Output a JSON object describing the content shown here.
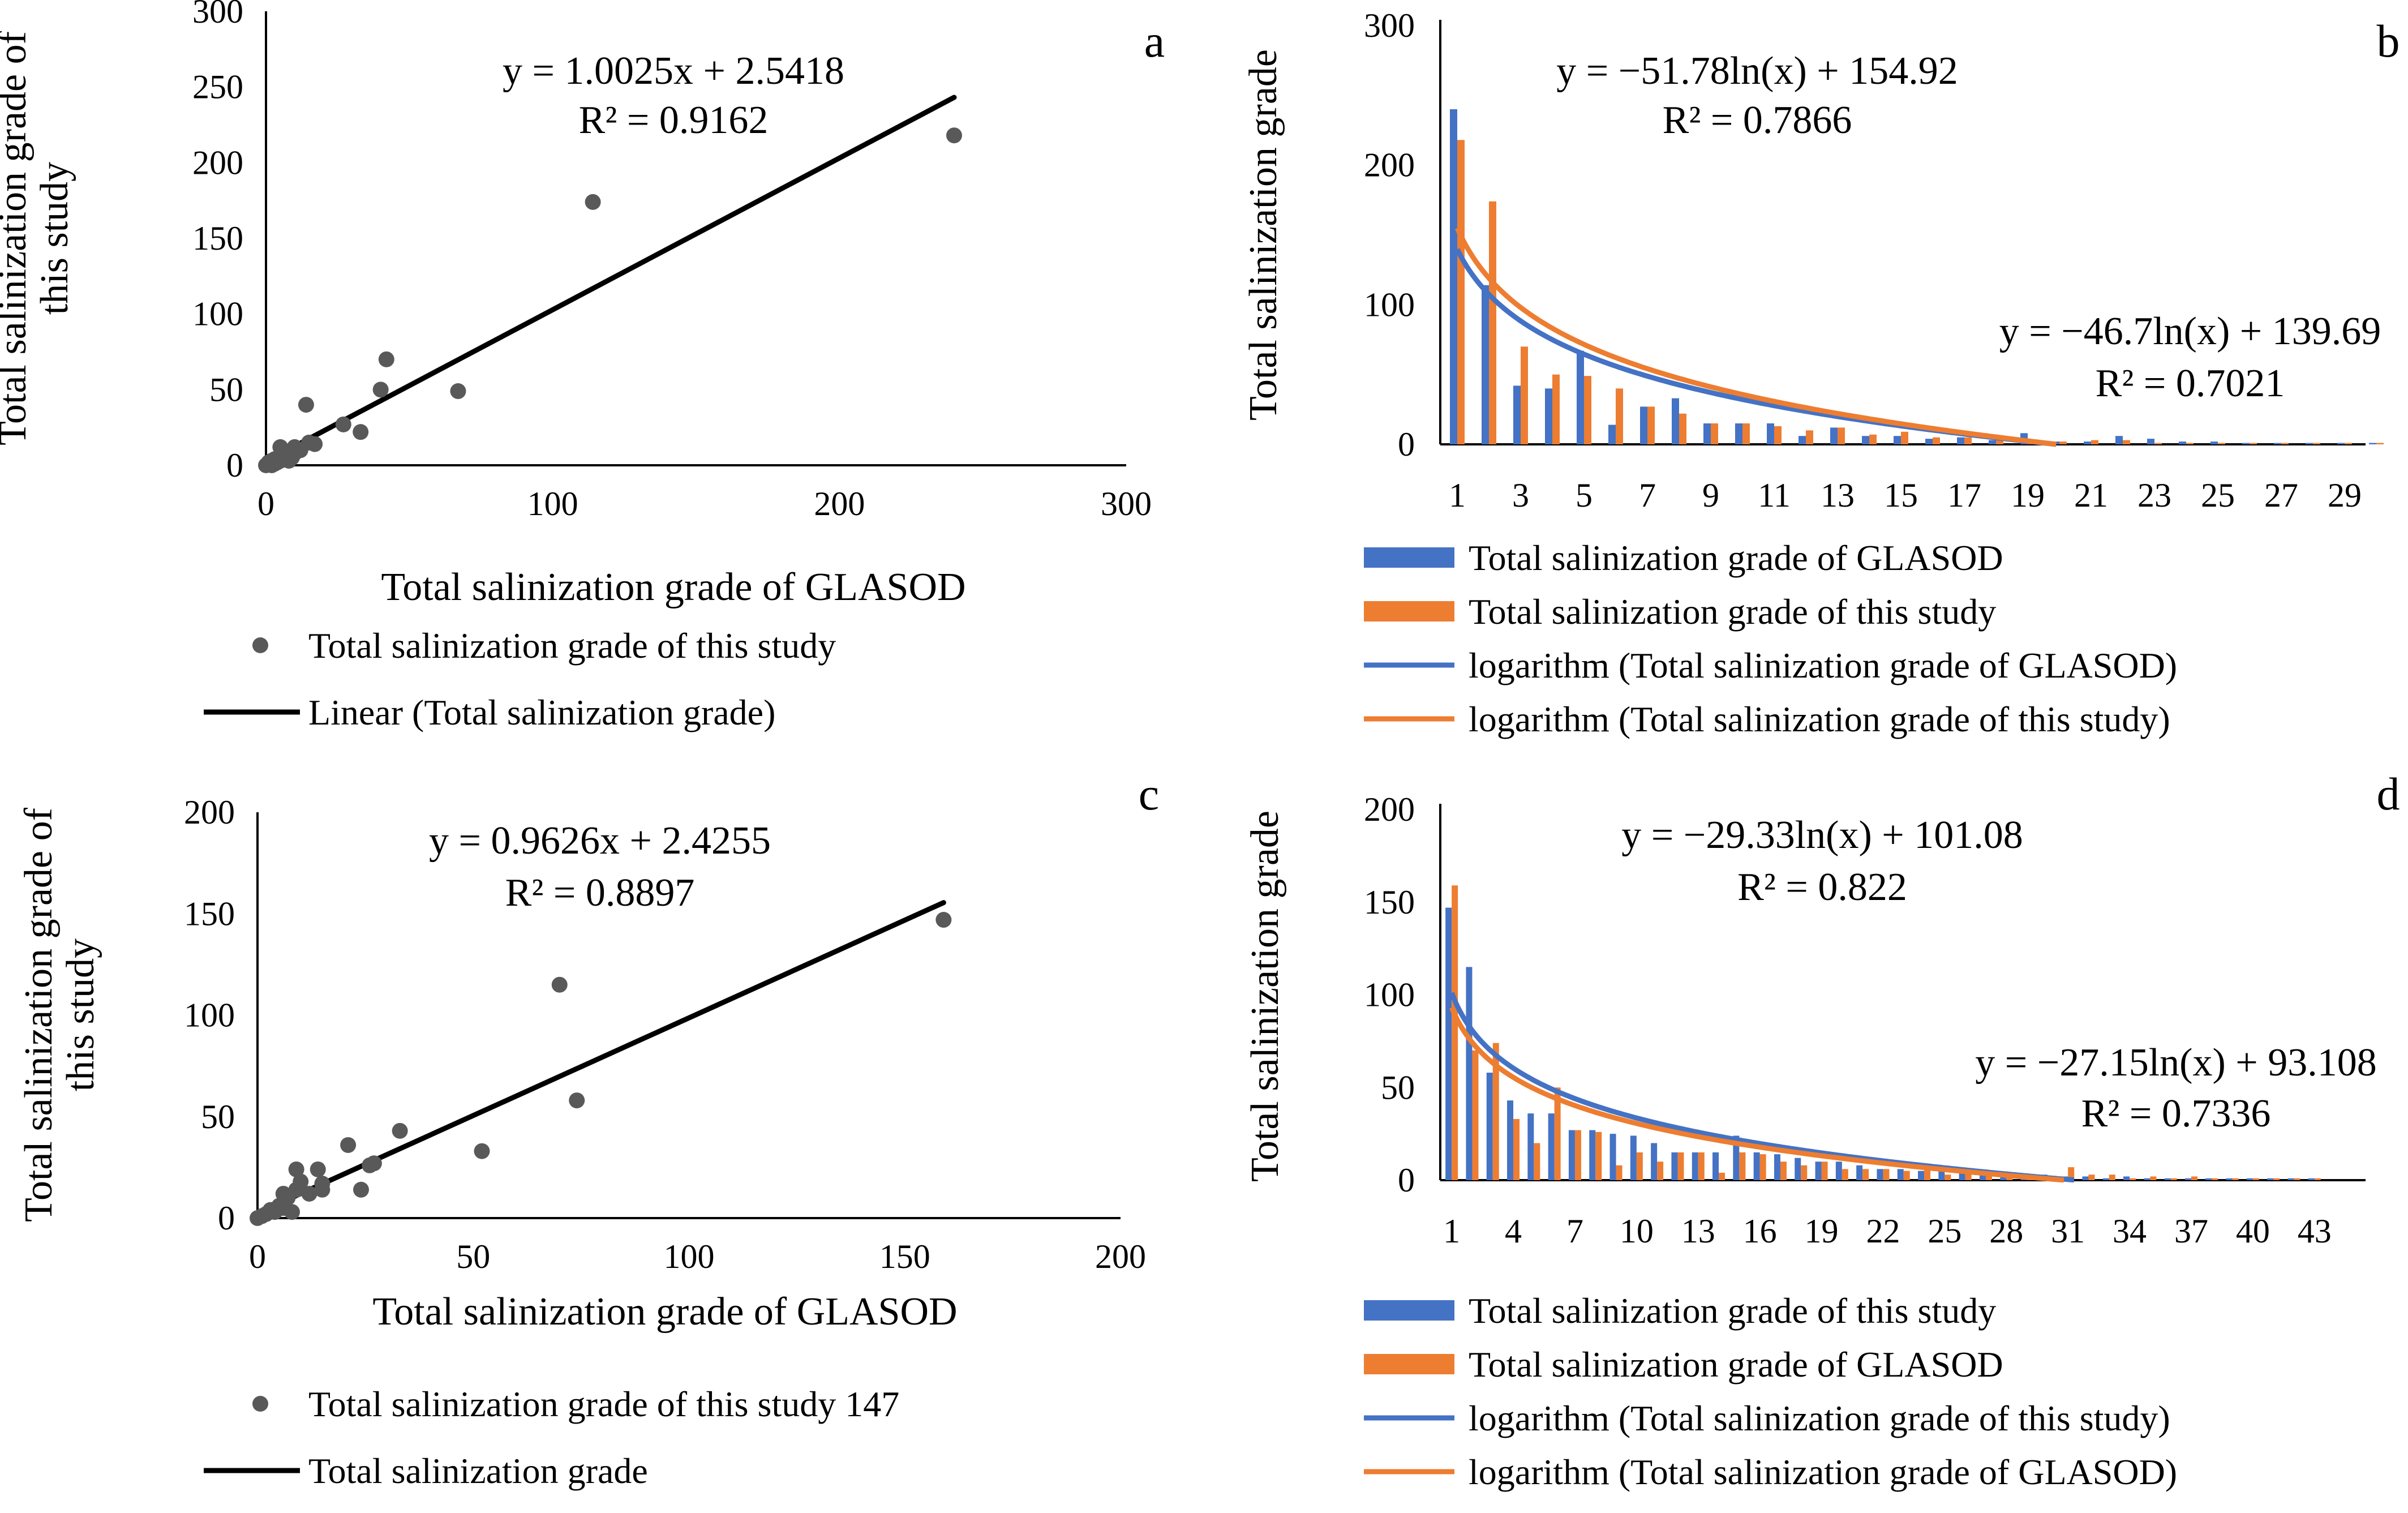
{
  "colors": {
    "blue": "#4472C4",
    "orange": "#ED7D31",
    "gray": "#595959",
    "black": "#000000"
  },
  "chart_data": [
    {
      "type": "scatter",
      "panel": "a",
      "xlabel": "Total salinization grade of GLASOD",
      "ylabel": [
        "Total salinization grade of",
        "this study"
      ],
      "xlim": [
        0,
        300
      ],
      "ylim": [
        0,
        300
      ],
      "xticks": [
        0,
        100,
        200,
        300
      ],
      "yticks": [
        0,
        50,
        100,
        150,
        200,
        250,
        300
      ],
      "points": [
        [
          0,
          0
        ],
        [
          1,
          1
        ],
        [
          1,
          2
        ],
        [
          2,
          0
        ],
        [
          2,
          3
        ],
        [
          3,
          1
        ],
        [
          3,
          4
        ],
        [
          4,
          2
        ],
        [
          5,
          6
        ],
        [
          5,
          3
        ],
        [
          6,
          8
        ],
        [
          7,
          4
        ],
        [
          8,
          3
        ],
        [
          9,
          5
        ],
        [
          10,
          8
        ],
        [
          10,
          12
        ],
        [
          5,
          12
        ],
        [
          12,
          10
        ],
        [
          14,
          40
        ],
        [
          15,
          15
        ],
        [
          17,
          14
        ],
        [
          27,
          27
        ],
        [
          33,
          22
        ],
        [
          40,
          50
        ],
        [
          42,
          70
        ],
        [
          67,
          49
        ],
        [
          114,
          174
        ],
        [
          240,
          218
        ]
      ],
      "trendline": {
        "slope": 1.0025,
        "intercept": 2.5418,
        "x_range": [
          0,
          240
        ]
      },
      "equation": "y = 1.0025x + 2.5418",
      "r2": "R² = 0.9162",
      "legend": [
        "Total salinization grade of this study",
        "Linear (Total salinization grade)"
      ]
    },
    {
      "type": "bar",
      "panel": "b",
      "ylabel": "Total salinization grade",
      "xlim": [
        1,
        30
      ],
      "ylim": [
        0,
        300
      ],
      "xticks": [
        1,
        3,
        5,
        7,
        9,
        11,
        13,
        15,
        17,
        19,
        21,
        23,
        25,
        27,
        29
      ],
      "yticks": [
        0,
        100,
        200,
        300
      ],
      "series": [
        {
          "name": "Total salinization grade of GLASOD",
          "color": "blue",
          "values": [
            240,
            114,
            42,
            40,
            67,
            14,
            27,
            33,
            15,
            15,
            15,
            6,
            12,
            6,
            6,
            4,
            5,
            3,
            8,
            2,
            2,
            6,
            4,
            2,
            2,
            1,
            1,
            1,
            1,
            1
          ]
        },
        {
          "name": "Total salinization grade of this study",
          "color": "orange",
          "values": [
            218,
            174,
            70,
            50,
            49,
            40,
            27,
            22,
            15,
            15,
            13,
            10,
            12,
            7,
            9,
            5,
            5,
            3,
            3,
            2,
            3,
            3,
            1,
            1,
            1,
            1,
            1,
            1,
            1,
            1
          ]
        }
      ],
      "log_fits": [
        {
          "name": "logarithm (Total salinization grade of GLASOD)",
          "color": "blue",
          "a": -46.7,
          "b": 139.69
        },
        {
          "name": "logarithm (Total salinization grade of this study)",
          "color": "orange",
          "a": -51.78,
          "b": 154.92
        }
      ],
      "equation_1": "y = −51.78ln(x) + 154.92",
      "r2_1": "R² = 0.7866",
      "equation_2": "y = −46.7ln(x) + 139.69",
      "r2_2": "R² = 0.7021",
      "legend": [
        "Total salinization grade of GLASOD",
        "Total salinization grade of this study",
        "logarithm (Total salinization grade of GLASOD)",
        "logarithm (Total salinization grade of this study)"
      ]
    },
    {
      "type": "scatter",
      "panel": "c",
      "xlabel": "Total salinization grade of GLASOD",
      "ylabel": [
        "Total salinization grade of",
        "this study"
      ],
      "xlim": [
        0,
        200
      ],
      "ylim": [
        0,
        200
      ],
      "xticks": [
        0,
        50,
        100,
        150,
        200
      ],
      "yticks": [
        0,
        50,
        100,
        150,
        200
      ],
      "points": [
        [
          0,
          0
        ],
        [
          1,
          1
        ],
        [
          2,
          2
        ],
        [
          3,
          4
        ],
        [
          4,
          3
        ],
        [
          5,
          6
        ],
        [
          6,
          5
        ],
        [
          6,
          12
        ],
        [
          7,
          10
        ],
        [
          8,
          3
        ],
        [
          9,
          14
        ],
        [
          9,
          24
        ],
        [
          10,
          18
        ],
        [
          12,
          12
        ],
        [
          14,
          24
        ],
        [
          15,
          14
        ],
        [
          15,
          17
        ],
        [
          21,
          36
        ],
        [
          24,
          14
        ],
        [
          26,
          26
        ],
        [
          27,
          27
        ],
        [
          33,
          43
        ],
        [
          52,
          33
        ],
        [
          70,
          115
        ],
        [
          74,
          58
        ],
        [
          159,
          147
        ]
      ],
      "trendline": {
        "slope": 0.9626,
        "intercept": 2.4255,
        "x_range": [
          0,
          159
        ]
      },
      "equation": "y = 0.9626x + 2.4255",
      "r2": "R² = 0.8897",
      "legend": [
        "Total salinization grade of this study 147",
        "Total salinization grade"
      ]
    },
    {
      "type": "bar",
      "panel": "d",
      "ylabel": "Total salinization grade",
      "xlim": [
        1,
        43
      ],
      "ylim": [
        0,
        200
      ],
      "xticks": [
        1,
        4,
        7,
        10,
        13,
        16,
        19,
        22,
        25,
        28,
        31,
        34,
        37,
        40,
        43
      ],
      "yticks": [
        0,
        50,
        100,
        150,
        200
      ],
      "series": [
        {
          "name": "Total salinization grade of this study",
          "color": "blue",
          "values": [
            147,
            115,
            58,
            43,
            36,
            36,
            27,
            27,
            25,
            24,
            20,
            15,
            15,
            15,
            24,
            15,
            14,
            12,
            10,
            10,
            8,
            6,
            6,
            5,
            6,
            4,
            3,
            3,
            3,
            3,
            2,
            2,
            1,
            2,
            1,
            1,
            1,
            1,
            1,
            1,
            1,
            1,
            1
          ]
        },
        {
          "name": "Total salinization grade of GLASOD",
          "color": "orange",
          "values": [
            159,
            70,
            74,
            33,
            20,
            50,
            27,
            26,
            8,
            15,
            10,
            15,
            15,
            4,
            15,
            14,
            10,
            8,
            10,
            6,
            6,
            6,
            5,
            6,
            3,
            4,
            3,
            3,
            3,
            2,
            7,
            3,
            3,
            1,
            2,
            1,
            2,
            1,
            1,
            1,
            1,
            1,
            1
          ]
        }
      ],
      "log_fits": [
        {
          "name": "logarithm (Total salinization grade of this study)",
          "color": "blue",
          "a": -29.33,
          "b": 101.08
        },
        {
          "name": "logarithm (Total salinization grade of GLASOD)",
          "color": "orange",
          "a": -27.15,
          "b": 93.108
        }
      ],
      "equation_1": "y = −29.33ln(x) + 101.08",
      "r2_1": "R² = 0.822",
      "equation_2": "y = −27.15ln(x) + 93.108",
      "r2_2": "R² = 0.7336",
      "legend": [
        "Total salinization grade of this study",
        "Total salinization grade of GLASOD",
        "logarithm (Total salinization grade of this study)",
        "logarithm (Total salinization grade of GLASOD)"
      ]
    }
  ]
}
